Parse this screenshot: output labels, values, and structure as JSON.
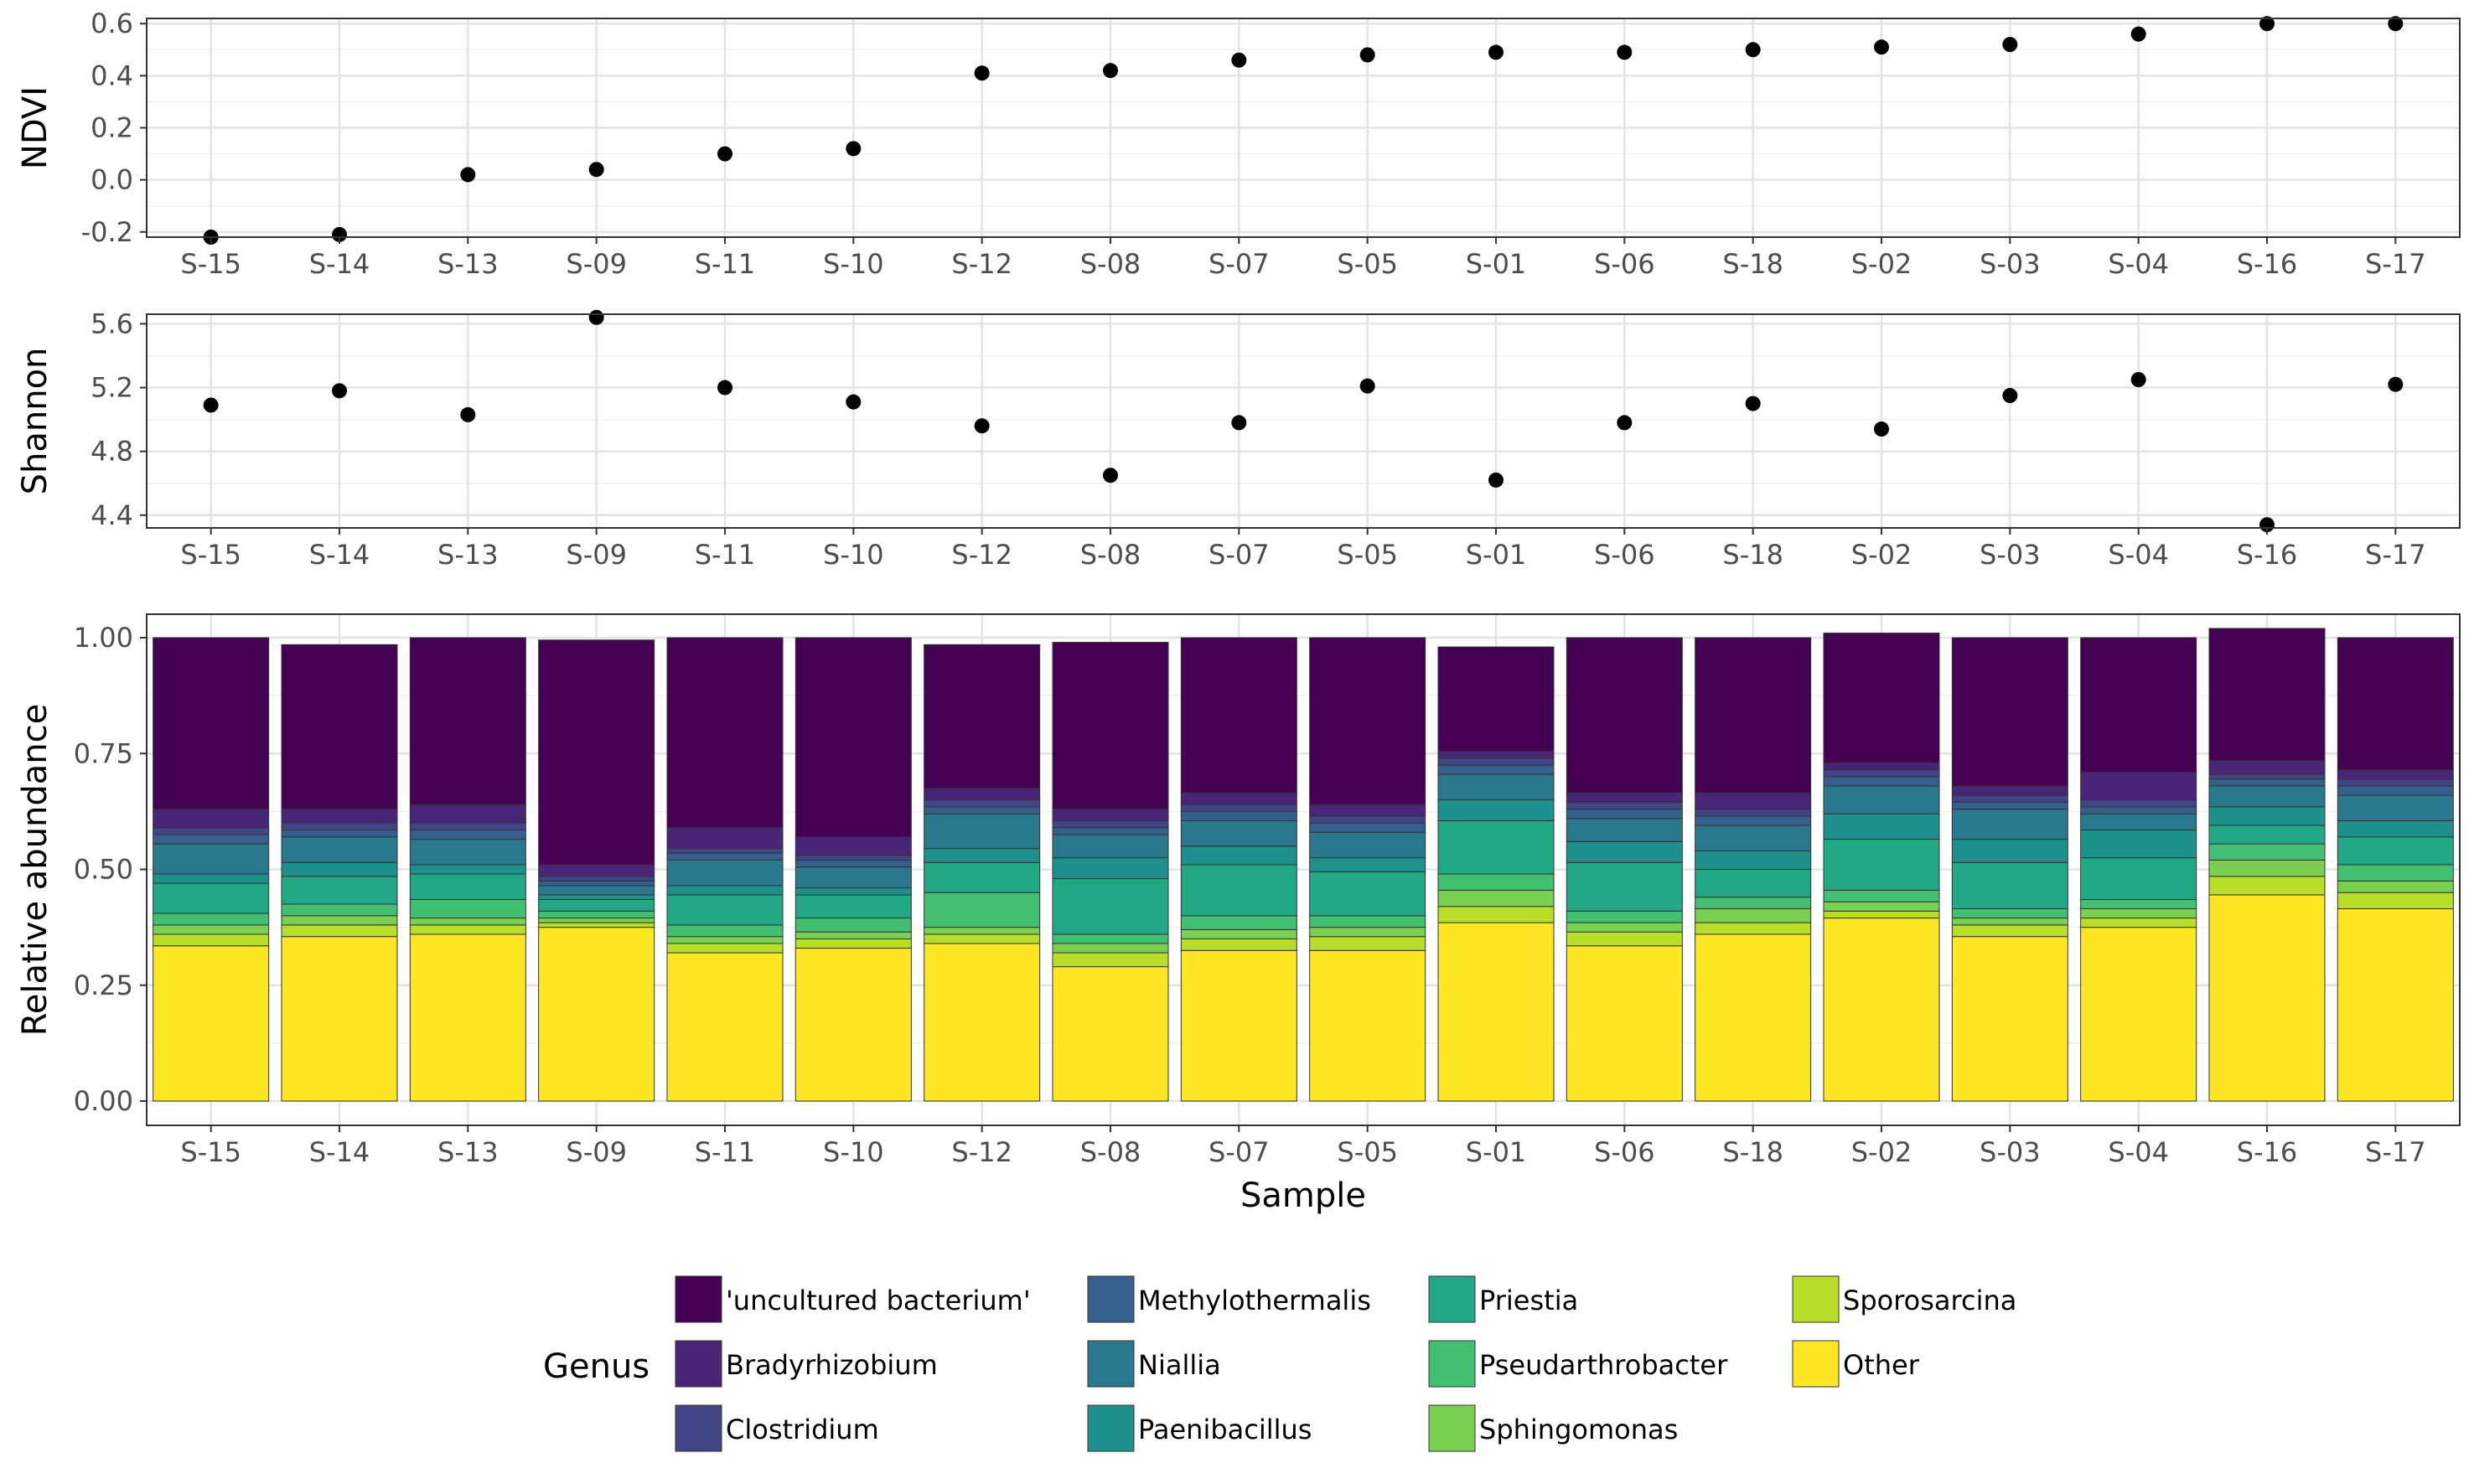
{
  "chart_data": [
    {
      "type": "scatter",
      "ylabel": "NDVI",
      "ylim": [
        -0.22,
        0.62
      ],
      "yticks": [
        "0.6",
        "0.4",
        "0.2",
        "0.0",
        "-0.2"
      ],
      "ytick_values": [
        0.6,
        0.4,
        0.2,
        0.0,
        -0.2
      ],
      "x": [
        "S-15",
        "S-14",
        "S-13",
        "S-09",
        "S-11",
        "S-10",
        "S-12",
        "S-08",
        "S-07",
        "S-05",
        "S-01",
        "S-06",
        "S-18",
        "S-02",
        "S-03",
        "S-04",
        "S-16",
        "S-17"
      ],
      "values": [
        -0.22,
        -0.21,
        0.02,
        0.04,
        0.1,
        0.12,
        0.41,
        0.42,
        0.46,
        0.48,
        0.49,
        0.49,
        0.5,
        0.51,
        0.52,
        0.56,
        0.6,
        0.6
      ],
      "grid": true
    },
    {
      "type": "scatter",
      "ylabel": "Shannon",
      "ylim": [
        4.32,
        5.66
      ],
      "yticks": [
        "5.6",
        "5.2",
        "4.8",
        "4.4"
      ],
      "ytick_values": [
        5.6,
        5.2,
        4.8,
        4.4
      ],
      "x": [
        "S-15",
        "S-14",
        "S-13",
        "S-09",
        "S-11",
        "S-10",
        "S-12",
        "S-08",
        "S-07",
        "S-05",
        "S-01",
        "S-06",
        "S-18",
        "S-02",
        "S-03",
        "S-04",
        "S-16",
        "S-17"
      ],
      "values": [
        5.09,
        5.18,
        5.03,
        5.64,
        5.2,
        5.11,
        4.96,
        4.65,
        4.98,
        5.21,
        4.62,
        4.98,
        5.1,
        4.94,
        5.15,
        5.25,
        4.34,
        5.22
      ],
      "grid": true
    },
    {
      "type": "bar",
      "stacked": true,
      "xlabel": "Sample",
      "ylabel": "Relative abundance",
      "ylim": [
        0,
        1
      ],
      "yticks": [
        "1.00",
        "0.75",
        "0.50",
        "0.25",
        "0.00"
      ],
      "ytick_values": [
        1.0,
        0.75,
        0.5,
        0.25,
        0.0
      ],
      "categories": [
        "S-15",
        "S-14",
        "S-13",
        "S-09",
        "S-11",
        "S-10",
        "S-12",
        "S-08",
        "S-07",
        "S-05",
        "S-01",
        "S-06",
        "S-18",
        "S-02",
        "S-03",
        "S-04",
        "S-16",
        "S-17"
      ],
      "legend_title": "Genus",
      "series": [
        {
          "name": "Other",
          "color": "#FDE725",
          "values": [
            0.335,
            0.355,
            0.36,
            0.375,
            0.32,
            0.33,
            0.34,
            0.29,
            0.325,
            0.325,
            0.385,
            0.335,
            0.36,
            0.395,
            0.355,
            0.375,
            0.445,
            0.415
          ]
        },
        {
          "name": "Sporosarcina",
          "color": "#B8DE29",
          "values": [
            0.025,
            0.025,
            0.02,
            0.01,
            0.02,
            0.02,
            0.02,
            0.03,
            0.025,
            0.03,
            0.035,
            0.03,
            0.025,
            0.015,
            0.025,
            0.02,
            0.04,
            0.035
          ]
        },
        {
          "name": "Sphingomonas",
          "color": "#7AD151",
          "values": [
            0.02,
            0.02,
            0.015,
            0.01,
            0.015,
            0.015,
            0.015,
            0.02,
            0.02,
            0.02,
            0.035,
            0.02,
            0.03,
            0.02,
            0.015,
            0.02,
            0.035,
            0.025
          ]
        },
        {
          "name": "Pseudarthrobacter",
          "color": "#43BF71",
          "values": [
            0.025,
            0.025,
            0.04,
            0.015,
            0.025,
            0.03,
            0.075,
            0.02,
            0.03,
            0.025,
            0.035,
            0.025,
            0.025,
            0.025,
            0.02,
            0.02,
            0.035,
            0.035
          ]
        },
        {
          "name": "Priestia",
          "color": "#22A884",
          "values": [
            0.065,
            0.06,
            0.055,
            0.025,
            0.065,
            0.05,
            0.065,
            0.12,
            0.11,
            0.095,
            0.115,
            0.105,
            0.06,
            0.11,
            0.1,
            0.09,
            0.04,
            0.06
          ]
        },
        {
          "name": "Paenibacillus",
          "color": "#1F918C",
          "values": [
            0.02,
            0.03,
            0.02,
            0.01,
            0.02,
            0.015,
            0.03,
            0.045,
            0.04,
            0.03,
            0.045,
            0.045,
            0.04,
            0.055,
            0.05,
            0.06,
            0.04,
            0.035
          ]
        },
        {
          "name": "Niallia",
          "color": "#2A788E",
          "values": [
            0.065,
            0.055,
            0.055,
            0.02,
            0.055,
            0.045,
            0.075,
            0.05,
            0.055,
            0.055,
            0.055,
            0.05,
            0.055,
            0.06,
            0.065,
            0.035,
            0.045,
            0.055
          ]
        },
        {
          "name": "Methylothermalis",
          "color": "#355F8D",
          "values": [
            0.02,
            0.015,
            0.02,
            0.01,
            0.015,
            0.015,
            0.015,
            0.015,
            0.02,
            0.02,
            0.02,
            0.02,
            0.02,
            0.02,
            0.015,
            0.015,
            0.015,
            0.02
          ]
        },
        {
          "name": "Clostridium",
          "color": "#414487",
          "values": [
            0.015,
            0.015,
            0.015,
            0.01,
            0.01,
            0.01,
            0.015,
            0.015,
            0.015,
            0.015,
            0.015,
            0.015,
            0.015,
            0.015,
            0.015,
            0.015,
            0.01,
            0.015
          ]
        },
        {
          "name": "Bradyrhizobium",
          "color": "#482576",
          "values": [
            0.04,
            0.03,
            0.04,
            0.025,
            0.045,
            0.04,
            0.025,
            0.025,
            0.025,
            0.025,
            0.015,
            0.02,
            0.035,
            0.015,
            0.02,
            0.06,
            0.03,
            0.02
          ]
        },
        {
          "name": "'uncultured bacterium'",
          "color": "#440154",
          "values": [
            0.37,
            0.355,
            0.36,
            0.485,
            0.41,
            0.43,
            0.31,
            0.36,
            0.335,
            0.36,
            0.225,
            0.335,
            0.335,
            0.28,
            0.32,
            0.29,
            0.285,
            0.285
          ]
        }
      ]
    }
  ],
  "legend": {
    "title": "Genus",
    "items": [
      {
        "label": "'uncultured bacterium'",
        "color": "#440154"
      },
      {
        "label": "Bradyrhizobium",
        "color": "#482576"
      },
      {
        "label": "Clostridium",
        "color": "#414487"
      },
      {
        "label": "Methylothermalis",
        "color": "#355F8D"
      },
      {
        "label": "Niallia",
        "color": "#2A788E"
      },
      {
        "label": "Paenibacillus",
        "color": "#1F918C"
      },
      {
        "label": "Priestia",
        "color": "#22A884"
      },
      {
        "label": "Pseudarthrobacter",
        "color": "#43BF71"
      },
      {
        "label": "Sphingomonas",
        "color": "#7AD151"
      },
      {
        "label": "Sporosarcina",
        "color": "#B8DE29"
      },
      {
        "label": "Other",
        "color": "#FDE725"
      }
    ]
  }
}
